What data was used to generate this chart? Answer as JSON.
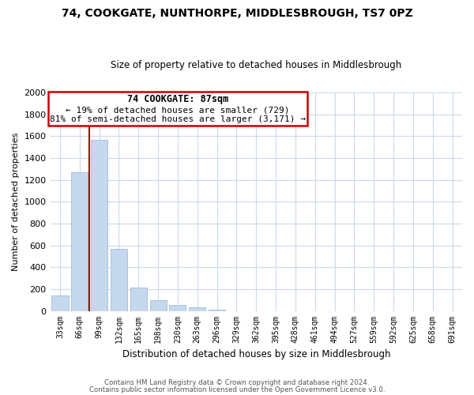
{
  "title": "74, COOKGATE, NUNTHORPE, MIDDLESBROUGH, TS7 0PZ",
  "subtitle": "Size of property relative to detached houses in Middlesbrough",
  "xlabel": "Distribution of detached houses by size in Middlesbrough",
  "ylabel": "Number of detached properties",
  "bar_labels": [
    "33sqm",
    "66sqm",
    "99sqm",
    "132sqm",
    "165sqm",
    "198sqm",
    "230sqm",
    "263sqm",
    "296sqm",
    "329sqm",
    "362sqm",
    "395sqm",
    "428sqm",
    "461sqm",
    "494sqm",
    "527sqm",
    "559sqm",
    "592sqm",
    "625sqm",
    "658sqm",
    "691sqm"
  ],
  "bar_values": [
    140,
    1270,
    1570,
    570,
    215,
    95,
    55,
    35,
    10,
    0,
    0,
    0,
    0,
    0,
    0,
    0,
    0,
    0,
    0,
    0,
    0
  ],
  "bar_color": "#c5d8ed",
  "bar_edge_color": "#a8c4e0",
  "property_line_color": "#aa0000",
  "ylim": [
    0,
    2000
  ],
  "yticks": [
    0,
    200,
    400,
    600,
    800,
    1000,
    1200,
    1400,
    1600,
    1800,
    2000
  ],
  "annotation_title": "74 COOKGATE: 87sqm",
  "annotation_line1": "← 19% of detached houses are smaller (729)",
  "annotation_line2": "81% of semi-detached houses are larger (3,171) →",
  "annotation_box_color": "#ffffff",
  "annotation_box_edge": "#cc0000",
  "footnote1": "Contains HM Land Registry data © Crown copyright and database right 2024.",
  "footnote2": "Contains public sector information licensed under the Open Government Licence v3.0.",
  "background_color": "#ffffff",
  "grid_color": "#ccdaeb"
}
